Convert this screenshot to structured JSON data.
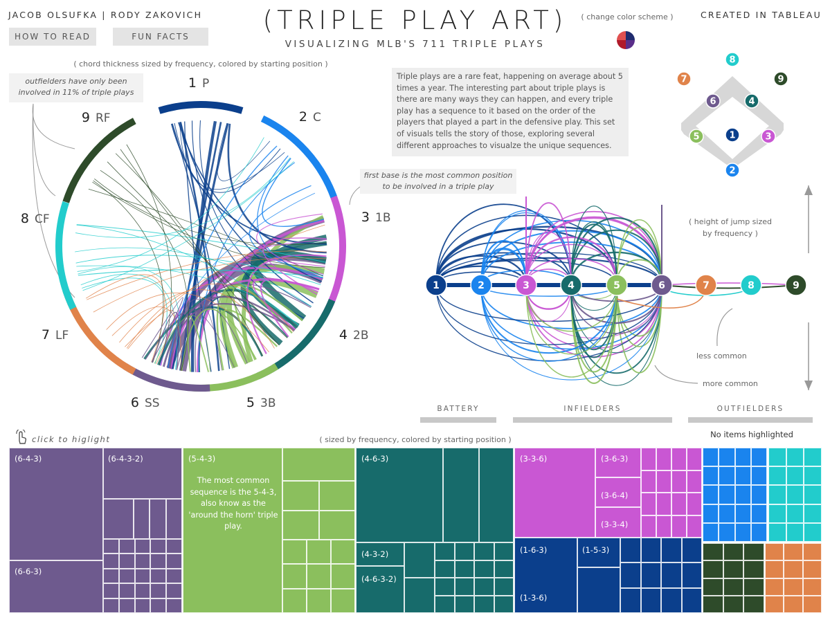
{
  "header": {
    "authors": "JACOB OLSUFKA | RODY ZAKOVICH",
    "how_to_read": "HOW TO READ",
    "fun_facts": "FUN FACTS",
    "title": "(TRIPLE PLAY ART)",
    "subtitle": "VISUALIZING MLB'S 711 TRIPLE PLAYS",
    "change_color": "( change color scheme )",
    "created": "CREATED IN TABLEAU"
  },
  "chord": {
    "note": "( chord thickness sized by frequency, colored by starting position )",
    "callout_outfield": "outfielders have only been involved in 11% of triple plays",
    "callout_firstbase": "first base is the most common position to be involved in a triple play"
  },
  "description": "Triple plays are a rare feat, happening on average about 5 times a year. The interesting part about triple plays is there are many ways they can happen, and every triple play has a sequence to it based on the order of the players that played a part in the defensive play. This set of visuals tells the story of those, exploring several different approaches to visualze the unique sequences.",
  "arc": {
    "height_note": "( height of jump sized by frequency )",
    "less_common": "less common",
    "more_common": "more common",
    "groups": [
      "BATTERY",
      "INFIELDERS",
      "OUTFIELDERS"
    ],
    "no_items": "No items highlighted"
  },
  "treemap": {
    "click_hint": "click to higlight",
    "note": "( sized by frequency, colored by starting position )",
    "callout": "The most common sequence is the 5-4-3, also know as the 'around the horn' triple play."
  },
  "colors": {
    "p1": "#0b3f8c",
    "p2": "#1a84ee",
    "p3": "#c957d3",
    "p4": "#176b6b",
    "p5": "#8bbf5d",
    "p6": "#6e5a8e",
    "p7": "#e0834a",
    "p8": "#22cccc",
    "p9": "#2e4b2a"
  },
  "chart_data": [
    {
      "type": "chord",
      "positions": [
        {
          "num": "1",
          "abbr": "P"
        },
        {
          "num": "2",
          "abbr": "C"
        },
        {
          "num": "3",
          "abbr": "1B"
        },
        {
          "num": "4",
          "abbr": "2B"
        },
        {
          "num": "5",
          "abbr": "3B"
        },
        {
          "num": "6",
          "abbr": "SS"
        },
        {
          "num": "7",
          "abbr": "LF"
        },
        {
          "num": "8",
          "abbr": "CF"
        },
        {
          "num": "9",
          "abbr": "RF"
        }
      ]
    },
    {
      "type": "arc",
      "nodes": [
        "1",
        "2",
        "3",
        "4",
        "5",
        "6",
        "7",
        "8",
        "9"
      ]
    },
    {
      "type": "treemap",
      "labels": [
        "(6-4-3)",
        "(6-4-3-2)",
        "(6-6-3)",
        "(5-4-3)",
        "(4-6-3)",
        "(4-3-2)",
        "(4-6-3-2)",
        "(3-3-6)",
        "(3-6-3)",
        "(3-6-4)",
        "(3-3-4)",
        "(1-6-3)",
        "(1-5-3)",
        "(1-3-6)"
      ]
    }
  ]
}
